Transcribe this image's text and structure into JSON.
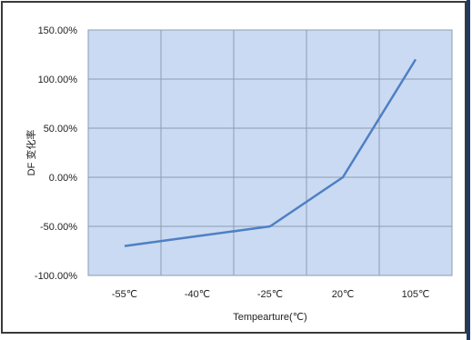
{
  "chart_data": {
    "type": "line",
    "categories": [
      "-55℃",
      "-40℃",
      "-25℃",
      "20℃",
      "105℃"
    ],
    "series": [
      {
        "values": [
          -70,
          -60,
          -50,
          0,
          120
        ]
      }
    ],
    "y_tick_labels": [
      "150.00%",
      "100.00%",
      "50.00%",
      "0.00%",
      "-50.00%",
      "-100.00%"
    ],
    "y_ticks": [
      150,
      100,
      50,
      0,
      -50,
      -100
    ],
    "ylim": [
      -100,
      150
    ],
    "xlabel": "Tempearture(℃)",
    "ylabel": "DF 变化率",
    "grid": true,
    "colors": {
      "plot_background": "#c9daf2",
      "gridline": "#8c9cb3",
      "line": "#4f7fc4"
    }
  }
}
